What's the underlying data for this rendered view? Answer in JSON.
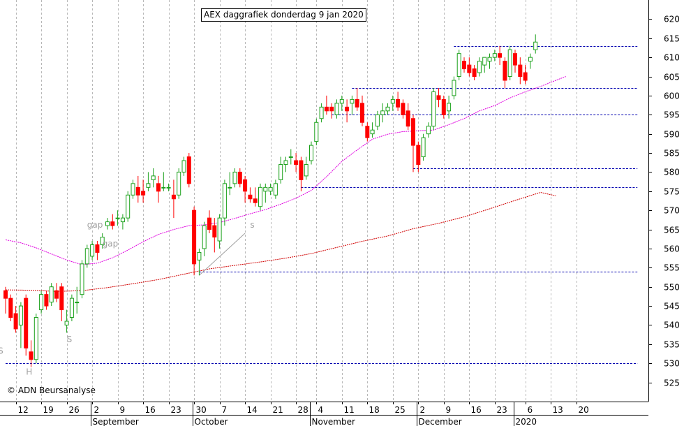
{
  "chart_data": {
    "type": "candlestick",
    "title": "AEX daggrafiek donderdag 9 jan 2020",
    "copyright": "© ADN Beursanalyse",
    "ylim": [
      520,
      625
    ],
    "y_ticks": [
      525,
      530,
      535,
      540,
      545,
      550,
      555,
      560,
      565,
      570,
      575,
      580,
      585,
      590,
      595,
      600,
      605,
      610,
      615,
      620
    ],
    "x_day_labels": [
      {
        "i": 2,
        "label": "12"
      },
      {
        "i": 7,
        "label": "19"
      },
      {
        "i": 12,
        "label": "26"
      },
      {
        "i": 17,
        "label": "2"
      },
      {
        "i": 22,
        "label": "9"
      },
      {
        "i": 27,
        "label": "16"
      },
      {
        "i": 32,
        "label": "23"
      },
      {
        "i": 37,
        "label": "30"
      },
      {
        "i": 42,
        "label": "7"
      },
      {
        "i": 47,
        "label": "14"
      },
      {
        "i": 52,
        "label": "21"
      },
      {
        "i": 57,
        "label": "28"
      },
      {
        "i": 61,
        "label": "4"
      },
      {
        "i": 66,
        "label": "11"
      },
      {
        "i": 71,
        "label": "18"
      },
      {
        "i": 76,
        "label": "25"
      },
      {
        "i": 81,
        "label": "2"
      },
      {
        "i": 86,
        "label": "9"
      },
      {
        "i": 91,
        "label": "16"
      },
      {
        "i": 96,
        "label": "23"
      },
      {
        "i": 102,
        "label": "6"
      },
      {
        "i": 107,
        "label": "13"
      },
      {
        "i": 112,
        "label": "20"
      }
    ],
    "x_month_labels": [
      {
        "i": 17,
        "label": "September"
      },
      {
        "i": 37,
        "label": "October"
      },
      {
        "i": 60,
        "label": "November"
      },
      {
        "i": 81,
        "label": "December"
      },
      {
        "i": 100,
        "label": "2020"
      }
    ],
    "candles": [
      [
        549,
        550,
        543,
        547
      ],
      [
        547,
        548,
        541,
        542
      ],
      [
        543,
        545,
        538,
        539
      ],
      [
        540,
        546,
        534,
        545
      ],
      [
        547,
        548,
        532,
        534
      ],
      [
        533,
        536,
        529,
        531
      ],
      [
        531,
        543,
        530,
        542
      ],
      [
        544,
        549,
        543,
        548
      ],
      [
        548,
        549,
        544,
        545
      ],
      [
        546,
        551,
        545,
        550
      ],
      [
        549,
        551,
        546,
        547
      ],
      [
        550,
        551,
        541,
        544
      ],
      [
        540,
        544,
        538,
        541
      ],
      [
        542,
        548,
        541,
        547
      ],
      [
        546,
        550,
        543,
        546
      ],
      [
        548,
        557,
        547,
        556
      ],
      [
        556,
        561,
        555,
        560
      ],
      [
        558,
        562,
        557,
        561
      ],
      [
        561,
        562,
        557,
        559
      ],
      [
        561,
        564,
        560,
        563
      ],
      [
        566,
        568,
        565,
        567
      ],
      [
        567,
        569,
        565,
        566
      ],
      [
        568,
        570,
        566,
        568
      ],
      [
        567,
        569,
        565,
        568
      ],
      [
        568,
        575,
        567,
        574
      ],
      [
        574,
        578,
        573,
        577
      ],
      [
        576,
        579,
        572,
        574
      ],
      [
        575,
        578,
        572,
        574
      ],
      [
        576,
        580,
        575,
        577
      ],
      [
        578,
        581,
        576,
        579
      ],
      [
        577,
        579,
        572,
        575
      ],
      [
        576,
        580,
        575,
        576
      ],
      [
        576,
        577,
        575,
        576
      ],
      [
        574,
        578,
        568,
        573
      ],
      [
        574,
        581,
        573,
        580
      ],
      [
        580,
        584,
        579,
        583
      ],
      [
        584,
        585,
        576,
        577
      ],
      [
        570,
        571,
        553,
        556
      ],
      [
        557,
        560,
        553,
        559
      ],
      [
        560,
        567,
        558,
        566
      ],
      [
        568,
        570,
        564,
        565
      ],
      [
        566,
        568,
        559,
        563
      ],
      [
        562,
        569,
        560,
        568
      ],
      [
        568,
        578,
        566,
        577
      ],
      [
        576,
        580,
        574,
        576
      ],
      [
        577,
        581,
        576,
        580
      ],
      [
        580,
        581,
        576,
        577
      ],
      [
        578,
        579,
        572,
        575
      ],
      [
        574,
        576,
        572,
        573
      ],
      [
        573,
        576,
        571,
        572
      ],
      [
        571,
        577,
        570,
        576
      ],
      [
        575,
        577,
        572,
        576
      ],
      [
        575,
        577,
        574,
        576
      ],
      [
        574,
        578,
        573,
        577
      ],
      [
        578,
        584,
        577,
        582
      ],
      [
        582,
        584,
        580,
        583
      ],
      [
        584,
        586,
        582,
        584
      ],
      [
        583,
        585,
        580,
        582
      ],
      [
        583,
        584,
        575,
        578
      ],
      [
        579,
        584,
        578,
        582
      ],
      [
        583,
        588,
        582,
        587
      ],
      [
        588,
        594,
        587,
        593
      ],
      [
        594,
        598,
        593,
        597
      ],
      [
        597,
        600,
        595,
        596
      ],
      [
        597,
        598,
        594,
        596
      ],
      [
        595,
        599,
        594,
        598
      ],
      [
        598,
        600,
        596,
        599
      ],
      [
        597,
        599,
        593,
        596
      ],
      [
        598,
        600,
        595,
        599
      ],
      [
        599,
        602,
        596,
        597
      ],
      [
        598,
        600,
        592,
        593
      ],
      [
        592,
        593,
        588,
        589
      ],
      [
        590,
        593,
        589,
        591
      ],
      [
        592,
        596,
        591,
        595
      ],
      [
        595,
        598,
        593,
        596
      ],
      [
        596,
        598,
        595,
        597
      ],
      [
        598,
        600,
        596,
        599
      ],
      [
        599,
        601,
        596,
        597
      ],
      [
        598,
        599,
        594,
        595
      ],
      [
        596,
        598,
        591,
        592
      ],
      [
        594,
        595,
        580,
        587
      ],
      [
        587,
        588,
        580,
        582
      ],
      [
        584,
        590,
        583,
        589
      ],
      [
        590,
        593,
        589,
        592
      ],
      [
        592,
        602,
        591,
        601
      ],
      [
        600,
        602,
        597,
        599
      ],
      [
        599,
        600,
        594,
        595
      ],
      [
        596,
        600,
        594,
        598
      ],
      [
        600,
        605,
        599,
        604
      ],
      [
        605,
        612,
        604,
        611
      ],
      [
        609,
        610,
        606,
        607
      ],
      [
        608,
        610,
        605,
        606
      ],
      [
        607,
        608,
        604,
        605
      ],
      [
        606,
        610,
        605,
        609
      ],
      [
        608,
        609,
        606,
        610
      ],
      [
        609,
        611,
        607,
        610
      ],
      [
        610,
        612,
        609,
        611
      ],
      [
        611,
        613,
        608,
        610
      ],
      [
        609,
        610,
        602,
        604
      ],
      [
        605,
        613,
        604,
        612
      ],
      [
        611,
        612,
        606,
        608
      ],
      [
        608,
        610,
        603,
        605
      ],
      [
        606,
        608,
        603,
        604
      ],
      [
        609,
        611,
        607,
        610
      ],
      [
        612,
        616,
        611,
        614
      ]
    ],
    "ma_short": [
      [
        0,
        562.3
      ],
      [
        3,
        561.5
      ],
      [
        6,
        560.2
      ],
      [
        9,
        558.6
      ],
      [
        12,
        557.0
      ],
      [
        15,
        555.8
      ],
      [
        18,
        556.2
      ],
      [
        21,
        557.6
      ],
      [
        24,
        559.6
      ],
      [
        27,
        561.8
      ],
      [
        30,
        563.7
      ],
      [
        33,
        565.0
      ],
      [
        36,
        566.0
      ],
      [
        39,
        566.2
      ],
      [
        42,
        566.8
      ],
      [
        45,
        567.9
      ],
      [
        48,
        569.1
      ],
      [
        51,
        570.2
      ],
      [
        54,
        571.6
      ],
      [
        57,
        573.2
      ],
      [
        60,
        575.2
      ],
      [
        63,
        578.8
      ],
      [
        66,
        582.8
      ],
      [
        69,
        585.8
      ],
      [
        72,
        588.6
      ],
      [
        75,
        589.9
      ],
      [
        78,
        590.6
      ],
      [
        81,
        590.8
      ],
      [
        84,
        591.0
      ],
      [
        87,
        592.4
      ],
      [
        90,
        594.0
      ],
      [
        93,
        596.0
      ],
      [
        96,
        597.4
      ],
      [
        99,
        599.4
      ],
      [
        102,
        601.0
      ],
      [
        105,
        602.4
      ],
      [
        108,
        604.0
      ],
      [
        110,
        605.0
      ]
    ],
    "ma_long": [
      [
        0,
        549.2
      ],
      [
        5,
        549.1
      ],
      [
        10,
        548.8
      ],
      [
        15,
        549.0
      ],
      [
        20,
        549.8
      ],
      [
        25,
        550.8
      ],
      [
        30,
        551.9
      ],
      [
        35,
        553.3
      ],
      [
        40,
        554.7
      ],
      [
        45,
        555.6
      ],
      [
        50,
        556.5
      ],
      [
        55,
        557.5
      ],
      [
        60,
        558.7
      ],
      [
        65,
        560.3
      ],
      [
        70,
        561.9
      ],
      [
        75,
        563.3
      ],
      [
        80,
        565.2
      ],
      [
        85,
        566.6
      ],
      [
        90,
        568.3
      ],
      [
        95,
        570.4
      ],
      [
        100,
        572.6
      ],
      [
        105,
        574.7
      ],
      [
        108,
        573.8
      ]
    ],
    "support_resistance": [
      {
        "y": 530,
        "from": 0,
        "to": 124
      },
      {
        "y": 554,
        "from": 38,
        "to": 124
      },
      {
        "y": 576,
        "from": 58,
        "to": 124
      },
      {
        "y": 581,
        "from": 80,
        "to": 124
      },
      {
        "y": 595,
        "from": 64,
        "to": 124
      },
      {
        "y": 602,
        "from": 68,
        "to": 124
      },
      {
        "y": 613,
        "from": 88,
        "to": 124
      }
    ],
    "trendline": [
      [
        38,
        553
      ],
      [
        47,
        564
      ]
    ],
    "annotations": [
      {
        "text": "gap",
        "i": 16,
        "y": 565.5,
        "color": "#a0a0a0"
      },
      {
        "text": "gap",
        "i": 19,
        "y": 560.5,
        "color": "#a0a0a0"
      },
      {
        "text": "S",
        "i": 12,
        "y": 535.5,
        "color": "#a0a0a0"
      },
      {
        "text": "S",
        "i": -1.5,
        "y": 532.5,
        "color": "#a0a0a0"
      },
      {
        "text": "H",
        "i": 4,
        "y": 527,
        "color": "#a0a0a0"
      },
      {
        "text": "s",
        "i": 48,
        "y": 565.5,
        "color": "#a0a0a0"
      }
    ],
    "colors": {
      "up": "#1aa01a",
      "down": "#ff0000",
      "ma_short": "#e000e0",
      "ma_long": "#d00000",
      "levels": "#0000b0",
      "grid": "#b8b8b8"
    }
  }
}
